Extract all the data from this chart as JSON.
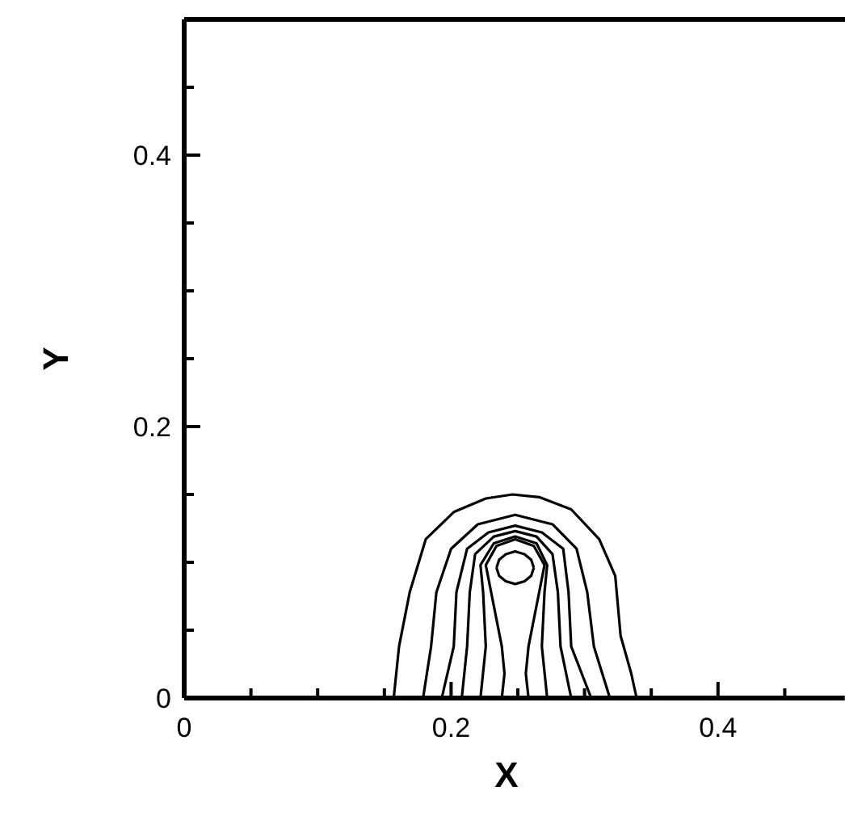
{
  "chart_data": {
    "type": "line",
    "xlabel": "X",
    "ylabel": "Y",
    "xlim": [
      0,
      0.495
    ],
    "ylim": [
      0,
      0.5
    ],
    "xticks": [
      0,
      {
        "value": 0.05,
        "label": null
      },
      {
        "value": 0.1,
        "label": null
      },
      {
        "value": 0.15,
        "label": null
      },
      0.2,
      {
        "value": 0.25,
        "label": null
      },
      {
        "value": 0.3,
        "label": null
      },
      {
        "value": 0.35,
        "label": null
      },
      0.4,
      {
        "value": 0.45,
        "label": null
      }
    ],
    "yticks": [
      0,
      {
        "value": 0.05,
        "label": null
      },
      {
        "value": 0.1,
        "label": null
      },
      {
        "value": 0.15,
        "label": null
      },
      0.2,
      {
        "value": 0.25,
        "label": null
      },
      {
        "value": 0.3,
        "label": null
      },
      {
        "value": 0.35,
        "label": null
      },
      0.4,
      {
        "value": 0.45,
        "label": null
      }
    ],
    "grid": false,
    "marker": "none",
    "line_style": "solid",
    "series": [
      {
        "color": "#000000",
        "x": [
          0.157,
          0.161,
          0.169,
          0.181,
          0.202,
          0.226,
          0.246,
          0.266,
          0.29,
          0.311,
          0.323,
          0.327,
          0.335,
          0.339
        ],
        "values": [
          0,
          0.038,
          0.078,
          0.117,
          0.137,
          0.147,
          0.15,
          0.148,
          0.139,
          0.117,
          0.09,
          0.046,
          0.018,
          0
        ]
      },
      {
        "color": "#000000",
        "x": [
          0.179,
          0.185,
          0.189,
          0.2,
          0.22,
          0.248,
          0.276,
          0.294,
          0.302,
          0.307,
          0.319
        ],
        "values": [
          0,
          0.038,
          0.078,
          0.11,
          0.128,
          0.135,
          0.128,
          0.11,
          0.078,
          0.038,
          0
        ]
      },
      {
        "color": "#000000",
        "x": [
          0.193,
          0.202,
          0.204,
          0.212,
          0.228,
          0.248,
          0.268,
          0.284,
          0.288,
          0.29,
          0.305
        ],
        "values": [
          0,
          0.038,
          0.078,
          0.11,
          0.122,
          0.127,
          0.122,
          0.11,
          0.078,
          0.038,
          0
        ]
      },
      {
        "color": "#000000",
        "x": [
          0.208,
          0.212,
          0.214,
          0.218,
          0.232,
          0.248,
          0.264,
          0.276,
          0.28,
          0.282,
          0.29
        ],
        "values": [
          0,
          0.038,
          0.078,
          0.106,
          0.119,
          0.123,
          0.119,
          0.106,
          0.078,
          0.038,
          0
        ]
      },
      {
        "color": "#000000",
        "x": [
          0.222,
          0.226,
          0.224,
          0.222,
          0.232,
          0.248,
          0.264,
          0.272,
          0.27,
          0.268,
          0.272
        ],
        "values": [
          0,
          0.038,
          0.078,
          0.098,
          0.114,
          0.119,
          0.114,
          0.098,
          0.078,
          0.038,
          0
        ]
      },
      {
        "color": "#000000",
        "x": [
          0.238,
          0.24,
          0.238,
          0.23,
          0.226,
          0.234,
          0.248,
          0.262,
          0.27,
          0.266,
          0.258,
          0.256,
          0.258
        ],
        "values": [
          0,
          0.018,
          0.038,
          0.078,
          0.098,
          0.112,
          0.117,
          0.112,
          0.098,
          0.078,
          0.038,
          0.018,
          0
        ]
      },
      {
        "color": "#000000",
        "x": [
          0.234,
          0.236,
          0.241,
          0.248,
          0.255,
          0.26,
          0.262
        ],
        "values": [
          0.096,
          0.102,
          0.106,
          0.108,
          0.106,
          0.102,
          0.096
        ]
      },
      {
        "color": "#000000",
        "x": [
          0.234,
          0.236,
          0.241,
          0.248,
          0.255,
          0.26,
          0.262
        ],
        "values": [
          0.096,
          0.09,
          0.086,
          0.084,
          0.086,
          0.09,
          0.096
        ]
      }
    ]
  }
}
